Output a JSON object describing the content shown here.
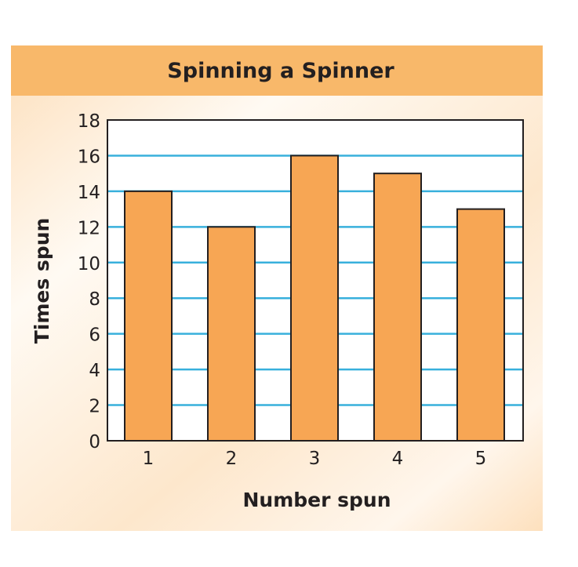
{
  "chart_data": {
    "type": "bar",
    "title": "Spinning a Spinner",
    "xlabel": "Number spun",
    "ylabel": "Times spun",
    "categories": [
      "1",
      "2",
      "3",
      "4",
      "5"
    ],
    "values": [
      14,
      12,
      16,
      15,
      13
    ],
    "ylim": [
      0,
      18
    ],
    "yticks": [
      "0",
      "2",
      "4",
      "6",
      "8",
      "10",
      "12",
      "14",
      "16",
      "18"
    ],
    "grid": true,
    "legend": "none",
    "colors": {
      "bar": "#f7a654",
      "bar_outline": "#231f20",
      "grid": "#38b0dc",
      "title_band": "#f8b86a",
      "panel": "#fde7cc"
    }
  }
}
